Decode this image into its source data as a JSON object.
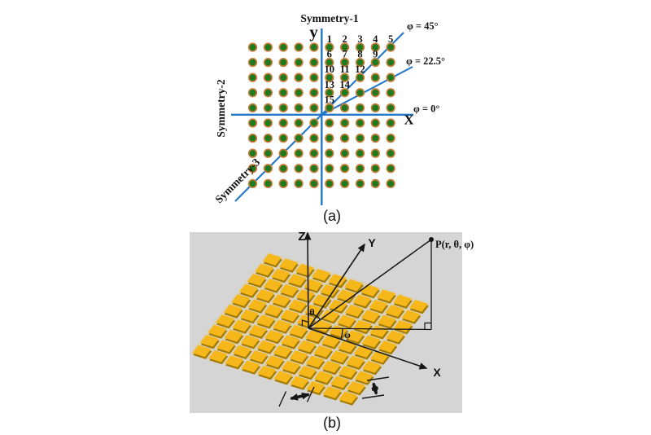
{
  "figure_a": {
    "caption": "(a)",
    "symmetry_labels": {
      "s1": "Symmetry-1",
      "s2": "Symmetry-2",
      "s3": "Symmetry-3"
    },
    "axis_labels": {
      "y": "y",
      "x": "X"
    },
    "angle_labels": {
      "phi_45": "φ = 45°",
      "phi_22_5": "φ = 22.5°",
      "phi_0": "φ = 0°"
    },
    "grid": {
      "rows": 10,
      "cols": 10
    },
    "numbered_elements": [
      [
        1,
        2,
        3,
        4,
        5
      ],
      [
        6,
        7,
        8,
        9
      ],
      [
        10,
        11,
        12
      ],
      [
        13,
        14
      ],
      [
        15
      ]
    ],
    "colors": {
      "dot_fill": "#1F7A1F",
      "dot_ring": "#C87E3A",
      "axis_blue": "#2377C8"
    }
  },
  "figure_b": {
    "caption": "(b)",
    "axis_labels": {
      "z": "Z",
      "y": "Y",
      "x": "X"
    },
    "point_label": "P(r, θ, φ)",
    "angle_theta": "θ",
    "angle_phi": "φ",
    "array": {
      "rows": 10,
      "cols": 10
    },
    "colors": {
      "panel_bg": "#D5D5D5",
      "tile_fill": "#F6B71B",
      "tile_shadow": "#A37B00",
      "plane_base": "#D8D2BE"
    }
  }
}
